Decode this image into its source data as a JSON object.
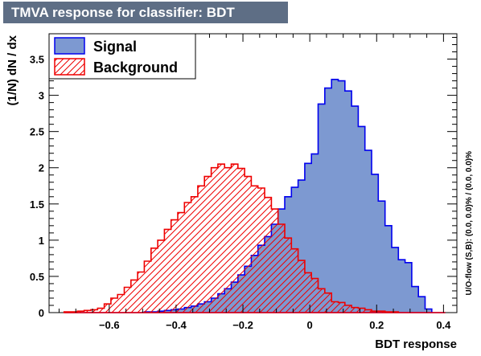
{
  "chart_data": {
    "type": "histogram",
    "title": "TMVA response for classifier: BDT",
    "xlabel": "BDT response",
    "ylabel": "(1/N) dN / dx",
    "side_note": "U/O-flow (S,B): (0.0, 0.0)% / (0.0, 0.0)%",
    "xlim": [
      -0.78,
      0.44
    ],
    "ylim": [
      0,
      3.85
    ],
    "x_ticks": [
      "−0.6",
      "−0.4",
      "−0.2",
      "0",
      "0.2",
      "0.4"
    ],
    "x_tick_values": [
      -0.6,
      -0.4,
      -0.2,
      0,
      0.2,
      0.4
    ],
    "y_ticks": [
      "0",
      "0.5",
      "1",
      "1.5",
      "2",
      "2.5",
      "3",
      "3.5"
    ],
    "y_tick_values": [
      0,
      0.5,
      1,
      1.5,
      2,
      2.5,
      3,
      3.5
    ],
    "bin_edges": [
      -0.735,
      -0.715,
      -0.695,
      -0.675,
      -0.655,
      -0.635,
      -0.615,
      -0.595,
      -0.575,
      -0.555,
      -0.535,
      -0.515,
      -0.495,
      -0.475,
      -0.455,
      -0.435,
      -0.415,
      -0.395,
      -0.375,
      -0.355,
      -0.335,
      -0.315,
      -0.295,
      -0.275,
      -0.255,
      -0.235,
      -0.215,
      -0.195,
      -0.175,
      -0.155,
      -0.135,
      -0.115,
      -0.095,
      -0.075,
      -0.055,
      -0.035,
      -0.015,
      0.005,
      0.025,
      0.045,
      0.065,
      0.085,
      0.105,
      0.125,
      0.145,
      0.165,
      0.185,
      0.205,
      0.225,
      0.245,
      0.265,
      0.285,
      0.305,
      0.325,
      0.345,
      0.365,
      0.385,
      0.405
    ],
    "series": [
      {
        "name": "Signal",
        "fill": "#7d99d1",
        "line": "#0000ee",
        "values": [
          0,
          0,
          0,
          0,
          0,
          0,
          0,
          0,
          0,
          0,
          0,
          0,
          0.01,
          0.01,
          0.02,
          0.03,
          0.04,
          0.05,
          0.07,
          0.09,
          0.12,
          0.15,
          0.2,
          0.26,
          0.33,
          0.42,
          0.52,
          0.64,
          0.79,
          0.93,
          1.05,
          1.22,
          1.43,
          1.6,
          1.73,
          1.83,
          2.06,
          2.19,
          2.88,
          3.1,
          3.22,
          3.2,
          3.06,
          2.85,
          2.57,
          2.24,
          1.91,
          1.54,
          1.2,
          0.9,
          0.73,
          0.69,
          0.36,
          0.22,
          0.05,
          0,
          0
        ]
      },
      {
        "name": "Background",
        "fill": "#ee0000",
        "line": "#ee0000",
        "values": [
          0.01,
          0.01,
          0.02,
          0.03,
          0.04,
          0.06,
          0.12,
          0.2,
          0.25,
          0.35,
          0.45,
          0.56,
          0.71,
          0.89,
          1.0,
          1.15,
          1.28,
          1.38,
          1.52,
          1.6,
          1.75,
          1.88,
          2.0,
          2.05,
          2.0,
          2.05,
          1.99,
          1.88,
          1.75,
          1.72,
          1.59,
          1.43,
          1.22,
          1.03,
          0.88,
          0.72,
          0.55,
          0.47,
          0.33,
          0.27,
          0.15,
          0.14,
          0.1,
          0.07,
          0.06,
          0.04,
          0.02,
          0.02,
          0.01,
          0.01,
          0,
          0,
          0,
          0,
          0,
          0,
          0
        ]
      }
    ],
    "legend": {
      "position": "top-left",
      "entries": [
        "Signal",
        "Background"
      ]
    }
  }
}
